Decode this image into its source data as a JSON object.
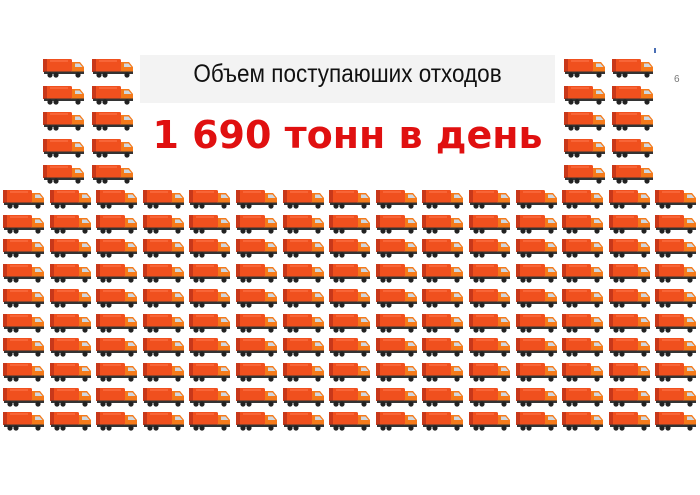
{
  "slide": {
    "title": "Объем поступаюших отходов",
    "headline": "1 690 тонн в день",
    "page_number": "6"
  },
  "truck_icon": "garbage-truck-icon",
  "colors": {
    "headline": "#e01010",
    "truck_body": "#f0501e",
    "truck_cab": "#f57a1a"
  },
  "truck_grid": {
    "top_left_block": {
      "rows": 5,
      "cols": 2
    },
    "top_right_block": {
      "rows": 5,
      "cols": 2
    },
    "main_block": {
      "rows": 10,
      "cols": 15
    }
  }
}
